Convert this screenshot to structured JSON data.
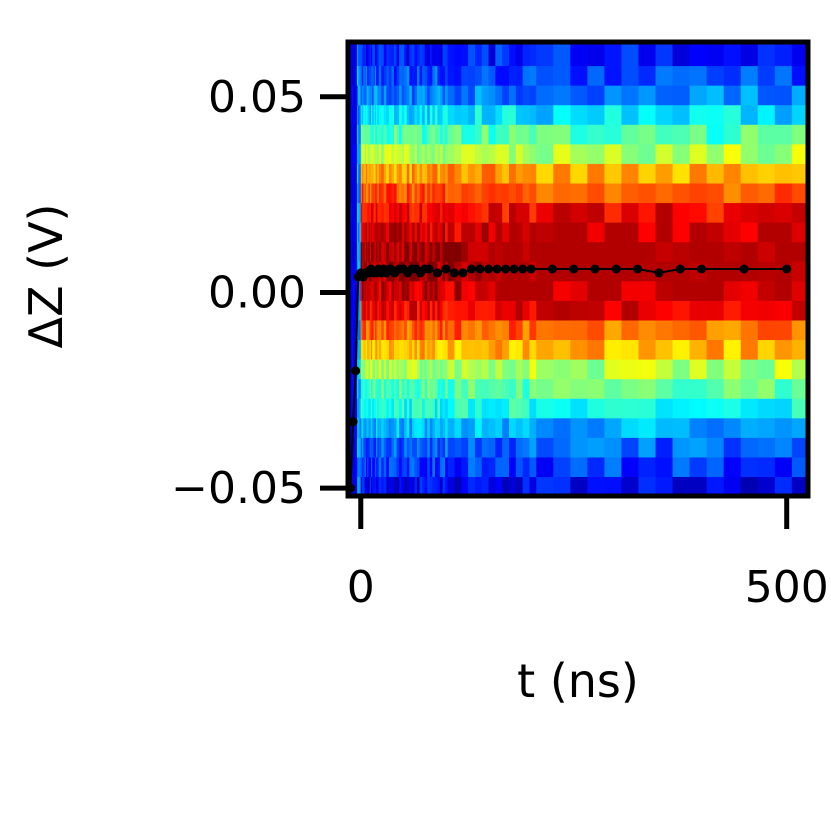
{
  "chart_data": {
    "type": "heatmap",
    "title": "",
    "xlabel": "t (ns)",
    "ylabel": "ΔZ (V)",
    "xlim": [
      -15,
      525
    ],
    "ylim": [
      -0.052,
      0.064
    ],
    "x_ticks": [
      {
        "value": 0,
        "label": "0"
      },
      {
        "value": 500,
        "label": "500"
      }
    ],
    "y_ticks": [
      {
        "value": 0.05,
        "label": "0.05"
      },
      {
        "value": 0.0,
        "label": "0.00"
      },
      {
        "value": -0.05,
        "label": "−0.05"
      }
    ],
    "colormap": "jet",
    "heatmap": {
      "z_bin_edges": [
        -0.052,
        -0.047,
        -0.042,
        -0.037,
        -0.032,
        -0.027,
        -0.022,
        -0.017,
        -0.012,
        -0.007,
        -0.002,
        0.003,
        0.008,
        0.013,
        0.018,
        0.023,
        0.028,
        0.033,
        0.038,
        0.043,
        0.048,
        0.053,
        0.058,
        0.064
      ],
      "z_bin_intensity": [
        0.12,
        0.18,
        0.22,
        0.3,
        0.4,
        0.45,
        0.55,
        0.7,
        0.78,
        0.88,
        0.93,
        0.97,
        0.97,
        0.92,
        0.88,
        0.8,
        0.72,
        0.55,
        0.45,
        0.35,
        0.25,
        0.2,
        0.15
      ]
    },
    "series": [
      {
        "marker": "circle",
        "color": "#000000",
        "x": [
          -12,
          -9,
          -6,
          -3,
          0,
          3,
          6,
          9,
          12,
          15,
          18,
          21,
          24,
          27,
          30,
          35,
          40,
          45,
          50,
          55,
          60,
          65,
          70,
          75,
          80,
          90,
          100,
          110,
          120,
          130,
          140,
          150,
          160,
          170,
          180,
          190,
          200,
          225,
          250,
          275,
          300,
          325,
          350,
          375,
          400,
          450,
          500
        ],
        "y": [
          -0.05,
          -0.033,
          -0.02,
          0.004,
          0.005,
          0.004,
          0.005,
          0.005,
          0.006,
          0.005,
          0.005,
          0.006,
          0.005,
          0.006,
          0.005,
          0.006,
          0.005,
          0.006,
          0.006,
          0.005,
          0.006,
          0.006,
          0.005,
          0.006,
          0.006,
          0.005,
          0.006,
          0.005,
          0.005,
          0.006,
          0.006,
          0.006,
          0.006,
          0.006,
          0.006,
          0.006,
          0.006,
          0.006,
          0.006,
          0.006,
          0.006,
          0.006,
          0.005,
          0.006,
          0.006,
          0.006,
          0.006
        ]
      }
    ]
  }
}
